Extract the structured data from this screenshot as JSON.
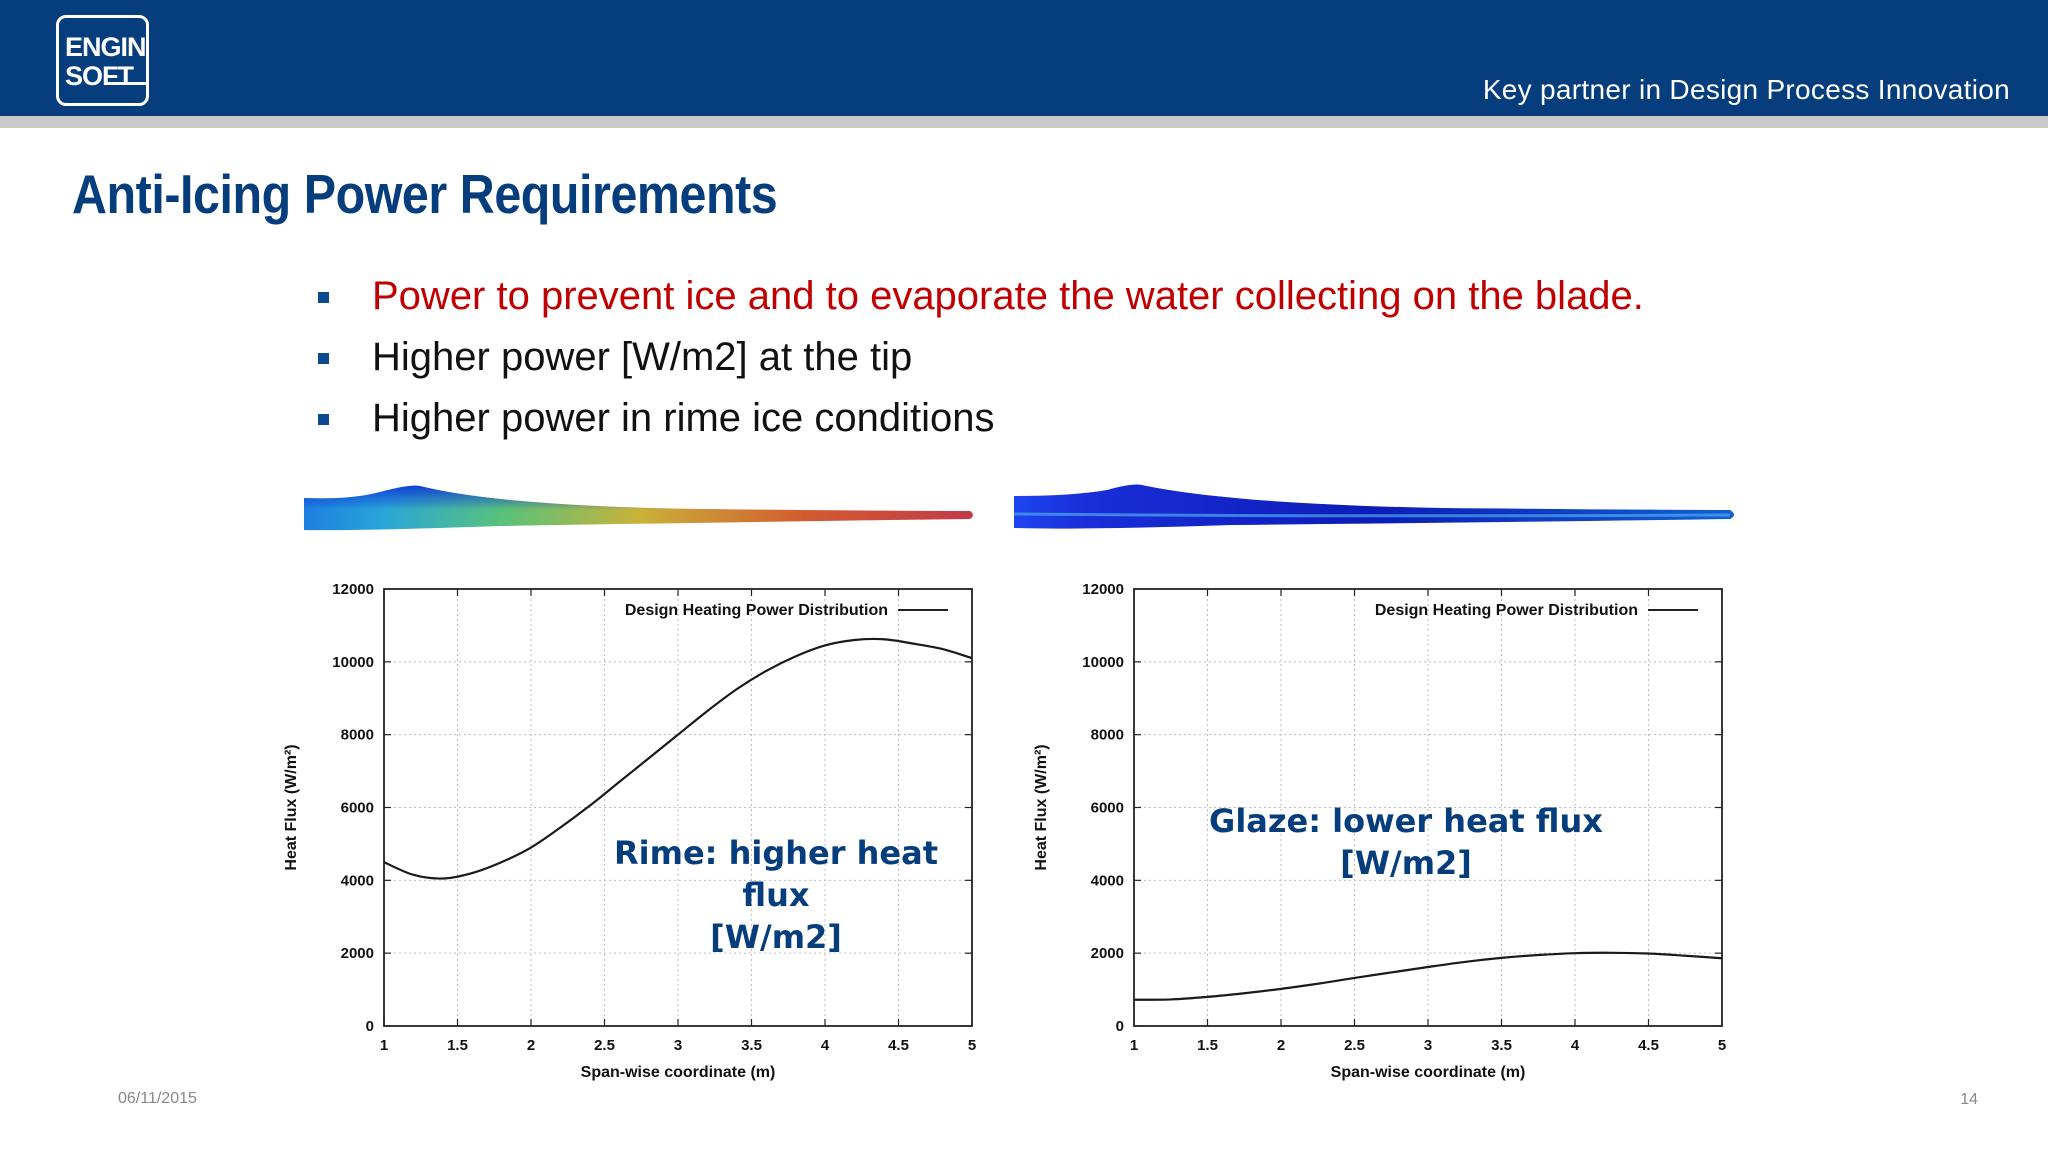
{
  "header": {
    "logo_line1": "ENGIN",
    "logo_line2": "SOFT",
    "tagline": "Key partner in Design Process Innovation",
    "color": "#063d7c"
  },
  "slide": {
    "title": "Anti-Icing Power Requirements",
    "bullets": [
      {
        "text": "Power to prevent ice and to evaporate the water collecting on the blade.",
        "color": "#c00000"
      },
      {
        "text": "Higher power [W/m2] at the tip",
        "color": "#111111"
      },
      {
        "text": "Higher power in rime ice conditions",
        "color": "#111111"
      }
    ],
    "date": "06/11/2015",
    "page": "14"
  },
  "notes": {
    "rime": [
      "Rime: higher heat flux",
      "[W/m2]"
    ],
    "glaze": [
      "Glaze: lower heat flux",
      "[W/m2]"
    ]
  },
  "chart_data": [
    {
      "type": "line",
      "title": "",
      "legend": "Design Heating Power Distribution",
      "legend_position": "top-right",
      "xlabel": "Span-wise coordinate (m)",
      "ylabel": "Heat Flux (W/m²)",
      "xlim": [
        1,
        5
      ],
      "ylim": [
        0,
        12000
      ],
      "xticks": [
        "1",
        "1.5",
        "2",
        "2.5",
        "3",
        "3.5",
        "4",
        "4.5",
        "5"
      ],
      "yticks": [
        "0",
        "2000",
        "4000",
        "6000",
        "8000",
        "10000",
        "12000"
      ],
      "grid": true,
      "series": [
        {
          "name": "Design Heating Power Distribution",
          "x": [
            1.0,
            1.2,
            1.4,
            1.6,
            1.8,
            2.0,
            2.2,
            2.4,
            2.6,
            2.8,
            3.0,
            3.2,
            3.4,
            3.6,
            3.8,
            4.0,
            4.2,
            4.4,
            4.6,
            4.8,
            5.0
          ],
          "y": [
            4500,
            4150,
            4050,
            4200,
            4500,
            4900,
            5450,
            6050,
            6700,
            7350,
            8000,
            8650,
            9250,
            9750,
            10150,
            10450,
            10600,
            10620,
            10500,
            10350,
            10100
          ]
        }
      ]
    },
    {
      "type": "line",
      "title": "",
      "legend": "Design Heating Power Distribution",
      "legend_position": "top-right",
      "xlabel": "Span-wise coordinate (m)",
      "ylabel": "Heat Flux (W/m²)",
      "xlim": [
        1,
        5
      ],
      "ylim": [
        0,
        12000
      ],
      "xticks": [
        "1",
        "1.5",
        "2",
        "2.5",
        "3",
        "3.5",
        "4",
        "4.5",
        "5"
      ],
      "yticks": [
        "0",
        "2000",
        "4000",
        "6000",
        "8000",
        "10000",
        "12000"
      ],
      "grid": true,
      "series": [
        {
          "name": "Design Heating Power Distribution",
          "x": [
            1.0,
            1.25,
            1.5,
            1.75,
            2.0,
            2.25,
            2.5,
            2.75,
            3.0,
            3.25,
            3.5,
            3.75,
            4.0,
            4.25,
            4.5,
            4.75,
            5.0
          ],
          "y": [
            720,
            730,
            800,
            900,
            1020,
            1160,
            1320,
            1470,
            1620,
            1760,
            1870,
            1950,
            2000,
            2010,
            1990,
            1930,
            1860
          ]
        }
      ]
    }
  ]
}
